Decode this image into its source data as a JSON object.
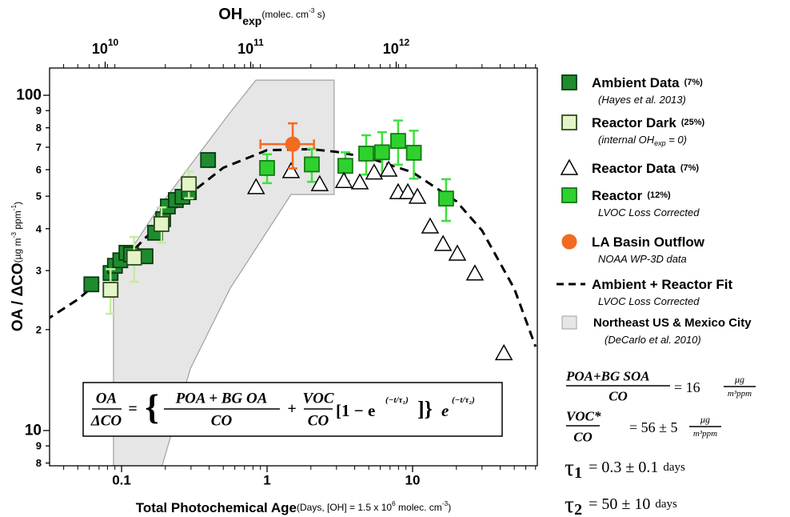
{
  "chart_data": {
    "type": "scatter",
    "x_scale": "log",
    "y_scale": "log",
    "xlabel": "Total Photochemical Age",
    "xlabel_units": [
      "(Days, [OH] = 1.5 x 10",
      "6",
      " molec. cm",
      "-3",
      ")"
    ],
    "ylabel": "OA / ΔCO",
    "ylabel_units": [
      "(µg m",
      "-3",
      " ppm",
      "-1",
      ")"
    ],
    "x2label": "OH",
    "x2label_sub": "exp",
    "x2label_units": [
      "(molec. cm",
      "-3",
      " s)"
    ],
    "xlim": [
      0.032,
      72
    ],
    "xticks": [
      0.1,
      1,
      10
    ],
    "xminorticks": [
      0.04,
      0.05,
      0.06,
      0.07,
      0.08,
      0.09,
      0.2,
      0.3,
      0.4,
      0.5,
      0.6,
      0.7,
      0.8,
      0.9,
      2,
      3,
      4,
      5,
      6,
      7,
      8,
      9,
      20,
      30,
      40,
      50,
      60,
      70
    ],
    "x2lim": [
      4150000000,
      9330000000000
    ],
    "x2ticks": [
      {
        "value": 10000000000,
        "label": "10",
        "exponent": "10"
      },
      {
        "value": 100000000000,
        "label": "10",
        "exponent": "11"
      },
      {
        "value": 1000000000000,
        "label": "10",
        "exponent": "12"
      }
    ],
    "ylim": [
      7.85,
      120.6
    ],
    "yticks": [
      {
        "value": 8,
        "label": "8"
      },
      {
        "value": 9,
        "label": "9"
      },
      10,
      {
        "value": 20,
        "label": "2"
      },
      {
        "value": 30,
        "label": "3"
      },
      {
        "value": 40,
        "label": "4"
      },
      {
        "value": 50,
        "label": "5"
      },
      {
        "value": 60,
        "label": "6"
      },
      {
        "value": 70,
        "label": "7"
      },
      {
        "value": 80,
        "label": "8"
      },
      {
        "value": 90,
        "label": "9"
      },
      100
    ],
    "series": [
      {
        "name": "Ambient Data",
        "pct": "(7%)",
        "note": "(Hayes et al. 2013)",
        "marker": "square",
        "color": "#1e8c2e",
        "edgecolor": "#0b3b12",
        "x": [
          0.062,
          0.084,
          0.09,
          0.098,
          0.108,
          0.116,
          0.146,
          0.17,
          0.193,
          0.208,
          0.236,
          0.262,
          0.29,
          0.393
        ],
        "values": [
          27.3,
          29.5,
          31.0,
          32.2,
          33.9,
          33.5,
          33.1,
          38.9,
          42.7,
          46.6,
          48.7,
          49.8,
          51.4,
          64.1
        ]
      },
      {
        "name": "Reactor Dark",
        "pct": "(25%)",
        "note": "(internal OH",
        "note_sub": "exp",
        "note_end": " = 0)",
        "marker": "square",
        "color": "#e3f4c6",
        "edgecolor": "#2d4a1d",
        "errorcolor": "#c5eba0",
        "x": [
          0.084,
          0.122,
          0.188,
          0.29
        ],
        "values": [
          26.3,
          32.8,
          41.3,
          54.3
        ],
        "errors": [
          4,
          5,
          5,
          5
        ]
      },
      {
        "name": "Reactor Data",
        "pct": "(7%)",
        "marker": "triangle",
        "color": "#ffffff",
        "edgecolor": "#000000",
        "x": [
          0.84,
          1.46,
          2.3,
          3.37,
          4.34,
          5.44,
          6.85,
          7.96,
          9.27,
          10.8,
          13.2,
          16.2,
          20.3,
          26.8,
          42.4
        ],
        "values": [
          53.2,
          59.4,
          54.3,
          55.5,
          55.0,
          58.8,
          60.0,
          51.4,
          51.4,
          49.8,
          40.6,
          36.0,
          33.7,
          29.4,
          17.0
        ]
      },
      {
        "name": "Reactor",
        "pct": "(12%)",
        "note": "LVOC Loss Corrected",
        "marker": "square",
        "color": "#2ed12e",
        "edgecolor": "#147a14",
        "errorcolor": "#3de03d",
        "x": [
          1.0,
          2.03,
          3.45,
          4.8,
          6.17,
          7.96,
          10.2,
          17.0
        ],
        "values": [
          60.7,
          62.2,
          61.6,
          67.0,
          67.6,
          73.1,
          67.4,
          49.2
        ],
        "errors": [
          6,
          7,
          6,
          9,
          10,
          11,
          11,
          7
        ]
      },
      {
        "name": "LA Basin Outflow",
        "note": "NOAA WP-3D data",
        "marker": "circle",
        "color": "#f36a21",
        "edgecolor": "#f36a21",
        "errorcolor": "#f36a21",
        "x": [
          1.5
        ],
        "values": [
          71.5
        ],
        "errors": [
          11
        ],
        "x_errors": [
          0.6
        ]
      },
      {
        "name": "Ambient + Reactor Fit",
        "note": "LVOC  Loss Corrected",
        "marker": "line",
        "color": "#000000",
        "x": [
          0.03,
          0.05,
          0.1,
          0.2,
          0.3,
          0.5,
          1,
          2,
          3,
          5,
          10,
          20,
          30,
          50,
          70
        ],
        "values": [
          21.3,
          24.6,
          31.8,
          43.1,
          51.1,
          60.8,
          68.6,
          69.1,
          67.8,
          65.1,
          58.9,
          48.3,
          39.5,
          26.5,
          17.8
        ]
      },
      {
        "name": "Northeast US & Mexico City",
        "note": "(DeCarlo et al. 2010)",
        "marker": "region",
        "color": "#e6e6e6",
        "edgecolor": "#a0a0a0",
        "x": [
          0.088,
          0.088,
          0.179,
          0.382,
          0.559,
          0.838,
          2.89,
          2.89,
          1.46,
          0.559,
          0.297,
          0.19
        ],
        "values": [
          7.85,
          28.9,
          46.1,
          71.5,
          89,
          111,
          111,
          50.6,
          50.6,
          26.6,
          15.3,
          7.85
        ]
      }
    ],
    "equation": {
      "lhs_num": "OA",
      "lhs_den": "ΔCO",
      "eq": "=",
      "open": "{",
      "t1_num": "POA + BG OA",
      "t1_den": "CO",
      "plus": "+",
      "t2_num": "VOC",
      "t2_den": "CO",
      "bracket": "[1 − e",
      "exp1": "(−t/τ₁)",
      "close": "]}",
      "e2": "e",
      "exp2": "(−t/τ₂)"
    },
    "parameters": [
      {
        "num": "POA+BG SOA",
        "den": "CO",
        "rhs": "= 16",
        "unit_num": "μg",
        "unit_den": "m³ppm"
      },
      {
        "num": "VOC*",
        "den": "CO",
        "rhs": "= 56 ± 5",
        "unit_num": "μg",
        "unit_den": "m³ppm"
      },
      {
        "symbol": "τ",
        "sub": "1",
        "rhs": "= 0.3 ± 0.1",
        "unit": "days"
      },
      {
        "symbol": "τ",
        "sub": "2",
        "rhs": "= 50 ± 10",
        "unit": "days"
      }
    ]
  }
}
